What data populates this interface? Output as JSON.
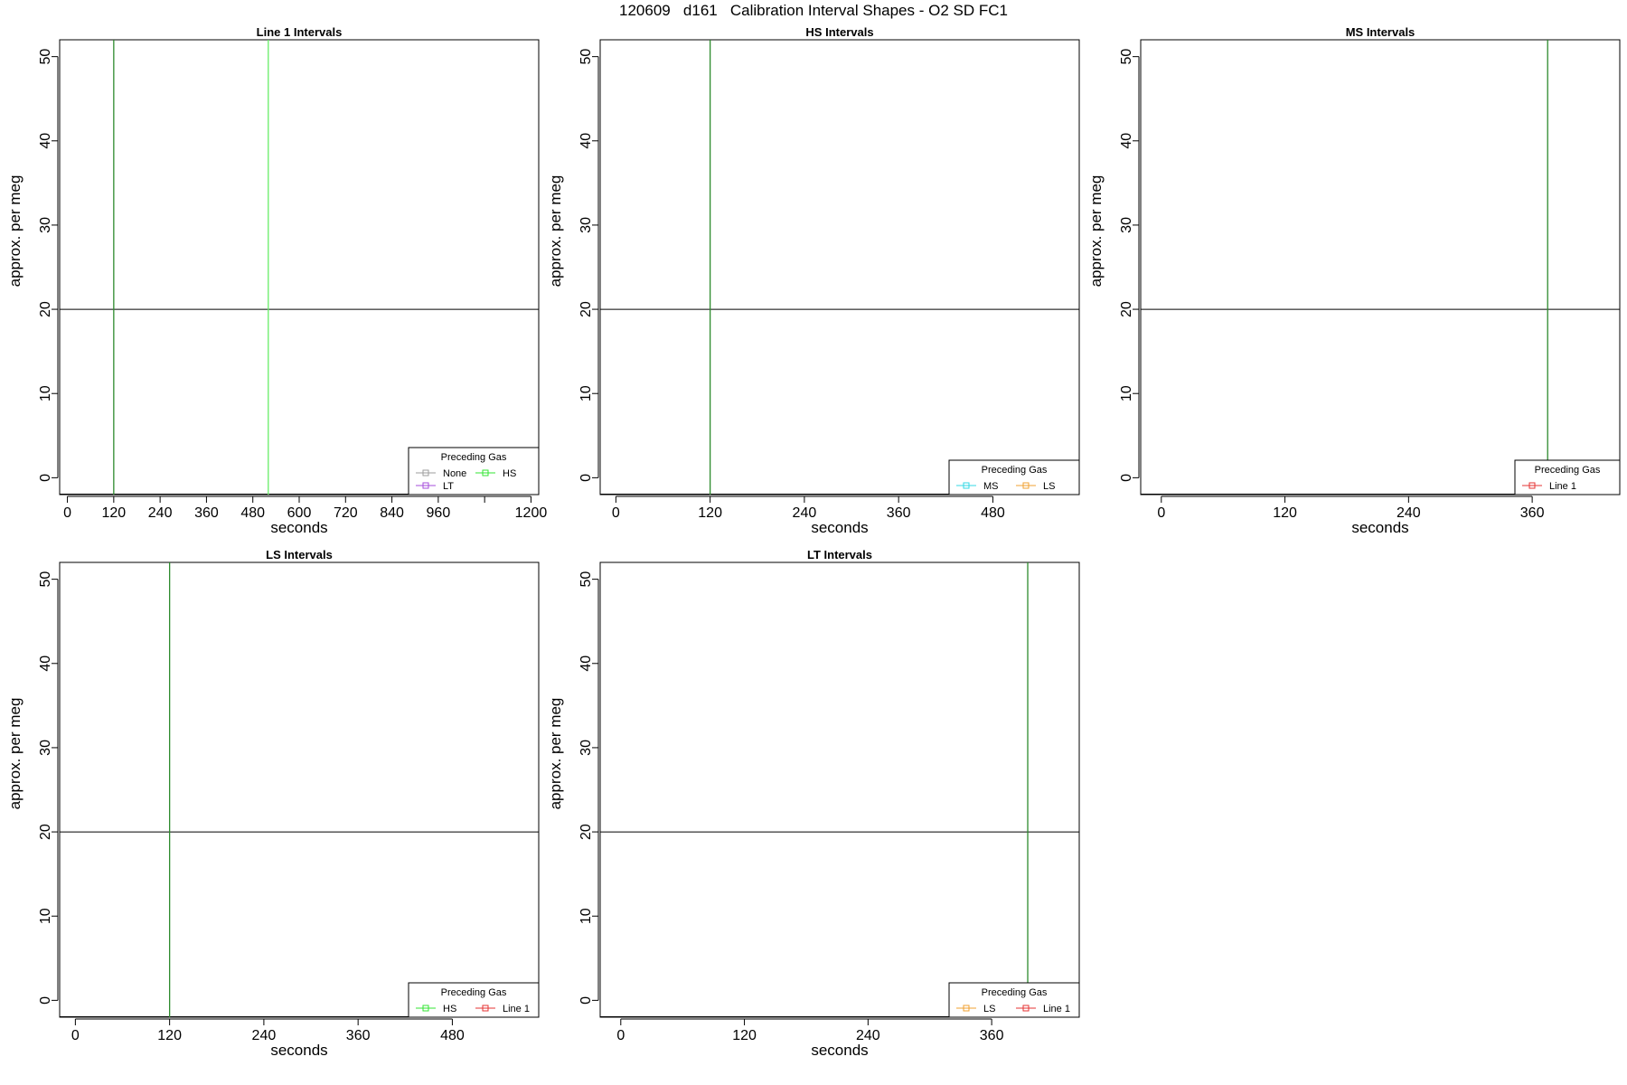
{
  "figure_title": "120609   d161   Calibration Interval Shapes - O2 SD FC1",
  "colors": {
    "None": "#9e9e9e",
    "LT": "#a64ddb",
    "HS": "#33e633",
    "MS": "#33d9e6",
    "LS": "#f0a030",
    "Line 1": "#e63333",
    "interval_line_dark": "#2e8b2e",
    "interval_line_light": "#66ee66",
    "reference_line": "#000000"
  },
  "chart_data": [
    {
      "type": "line",
      "title": "Line 1 Intervals",
      "xlabel": "seconds",
      "ylabel": "approx. per meg",
      "xlim": [
        -20,
        1220
      ],
      "ylim": [
        -2,
        52
      ],
      "xticks": [
        0,
        120,
        240,
        360,
        480,
        600,
        720,
        840,
        960,
        1080,
        1200
      ],
      "xtick_labels": [
        "0",
        "120",
        "240",
        "360",
        "480",
        "600",
        "720",
        "840",
        "960",
        "",
        "1200"
      ],
      "yticks": [
        0,
        10,
        20,
        30,
        40,
        50
      ],
      "hline": 20,
      "vlines": [
        {
          "x": 120,
          "color": "#2e8b2e"
        },
        {
          "x": 520,
          "color": "#66ee66"
        }
      ],
      "legend": {
        "title": "Preceding Gas",
        "position": "bottom-right",
        "ncol": 2,
        "entries": [
          "None",
          "HS",
          "LT"
        ]
      }
    },
    {
      "type": "line",
      "title": "HS Intervals",
      "xlabel": "seconds",
      "ylabel": "approx. per meg",
      "xlim": [
        -20,
        590
      ],
      "ylim": [
        -2,
        52
      ],
      "xticks": [
        0,
        120,
        240,
        360,
        480
      ],
      "xtick_labels": [
        "0",
        "120",
        "240",
        "360",
        "480"
      ],
      "yticks": [
        0,
        10,
        20,
        30,
        40,
        50
      ],
      "hline": 20,
      "vlines": [
        {
          "x": 120,
          "color": "#2e8b2e"
        }
      ],
      "legend": {
        "title": "Preceding Gas",
        "position": "bottom-right",
        "ncol": 2,
        "entries": [
          "MS",
          "LS"
        ]
      }
    },
    {
      "type": "line",
      "title": "MS Intervals",
      "xlabel": "seconds",
      "ylabel": "approx. per meg",
      "xlim": [
        -20,
        445
      ],
      "ylim": [
        -2,
        52
      ],
      "xticks": [
        0,
        120,
        240,
        360
      ],
      "xtick_labels": [
        "0",
        "120",
        "240",
        "360"
      ],
      "yticks": [
        0,
        10,
        20,
        30,
        40,
        50
      ],
      "hline": 20,
      "vlines": [
        {
          "x": 375,
          "color": "#2e8b2e"
        }
      ],
      "legend": {
        "title": "Preceding Gas",
        "position": "bottom-right",
        "ncol": 1,
        "entries": [
          "Line 1"
        ]
      }
    },
    {
      "type": "line",
      "title": "LS Intervals",
      "xlabel": "seconds",
      "ylabel": "approx. per meg",
      "xlim": [
        -20,
        590
      ],
      "ylim": [
        -2,
        52
      ],
      "xticks": [
        0,
        120,
        240,
        360,
        480
      ],
      "xtick_labels": [
        "0",
        "120",
        "240",
        "360",
        "480"
      ],
      "yticks": [
        0,
        10,
        20,
        30,
        40,
        50
      ],
      "hline": 20,
      "vlines": [
        {
          "x": 120,
          "color": "#2e8b2e"
        }
      ],
      "legend": {
        "title": "Preceding Gas",
        "position": "bottom-right",
        "ncol": 2,
        "entries": [
          "HS",
          "Line 1"
        ]
      }
    },
    {
      "type": "line",
      "title": "LT Intervals",
      "xlabel": "seconds",
      "ylabel": "approx. per meg",
      "xlim": [
        -20,
        445
      ],
      "ylim": [
        -2,
        52
      ],
      "xticks": [
        0,
        120,
        240,
        360
      ],
      "xtick_labels": [
        "0",
        "120",
        "240",
        "360"
      ],
      "yticks": [
        0,
        10,
        20,
        30,
        40,
        50
      ],
      "hline": 20,
      "vlines": [
        {
          "x": 395,
          "color": "#2e8b2e"
        }
      ],
      "legend": {
        "title": "Preceding Gas",
        "position": "bottom-right",
        "ncol": 2,
        "entries": [
          "LS",
          "Line 1"
        ]
      }
    }
  ]
}
